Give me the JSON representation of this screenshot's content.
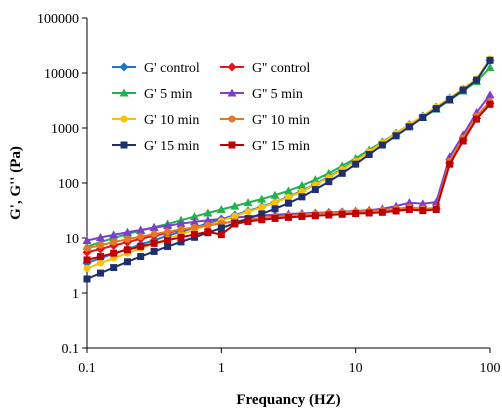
{
  "chart_data": {
    "type": "line",
    "title": "",
    "xlabel": "Frequancy (HZ)",
    "ylabel": "G', G'' (Pa)",
    "xscale": "log",
    "yscale": "log",
    "xlim": [
      0.1,
      100
    ],
    "ylim": [
      0.1,
      100000
    ],
    "x_ticks": [
      "0.1",
      "1",
      "10",
      "100"
    ],
    "y_ticks": [
      "0.1",
      "1",
      "10",
      "100",
      "1000",
      "10000",
      "100000"
    ],
    "grid": false,
    "legend_position": "top-left",
    "x": [
      0.1,
      0.126,
      0.158,
      0.2,
      0.251,
      0.316,
      0.398,
      0.501,
      0.631,
      0.794,
      1,
      1.26,
      1.58,
      2,
      2.51,
      3.16,
      3.98,
      5.01,
      6.31,
      7.94,
      10,
      12.6,
      15.8,
      20,
      25.1,
      31.6,
      39.8,
      50.1,
      63.1,
      79.4,
      100
    ],
    "series": [
      {
        "name": "G' control",
        "color": "#1f77c8",
        "marker": "diamond",
        "values": [
          3.5,
          4.3,
          5.2,
          6.3,
          7.6,
          9.1,
          11,
          13,
          15.5,
          18.5,
          22,
          26,
          31,
          37,
          45,
          56,
          72,
          95,
          130,
          180,
          260,
          380,
          550,
          800,
          1150,
          1650,
          2400,
          3500,
          5100,
          7500,
          17000
        ]
      },
      {
        "name": "G'' control",
        "color": "#e0161b",
        "marker": "diamond",
        "values": [
          5.5,
          6.3,
          7.3,
          8.4,
          9.7,
          11,
          12.5,
          14,
          15.5,
          17,
          18.5,
          20,
          21.5,
          23,
          24.5,
          26,
          27,
          28,
          29,
          29.5,
          30,
          31,
          32,
          33,
          35,
          33,
          34,
          230,
          600,
          1500,
          2800
        ]
      },
      {
        "name": "G' 5 min",
        "color": "#22b14c",
        "marker": "triangle",
        "values": [
          7,
          8.4,
          10,
          11.8,
          13.6,
          15.7,
          18,
          21,
          24.5,
          28.5,
          33,
          38,
          44,
          51,
          60,
          72,
          90,
          115,
          150,
          205,
          280,
          400,
          560,
          800,
          1100,
          1550,
          2200,
          3200,
          4700,
          7000,
          12500
        ]
      },
      {
        "name": "G'' 5 min",
        "color": "#7b3fc8",
        "marker": "triangle",
        "values": [
          9,
          10.2,
          11.4,
          12.7,
          14,
          15.4,
          16.8,
          18.2,
          19.6,
          21,
          22.3,
          23.5,
          24.6,
          25.6,
          26.5,
          27.3,
          28,
          28.7,
          29.3,
          30,
          31,
          32,
          34,
          38,
          44,
          42,
          45,
          300,
          750,
          1900,
          4000
        ]
      },
      {
        "name": "G' 10 min",
        "color": "#ffc000",
        "marker": "circle",
        "values": [
          2.8,
          3.5,
          4.3,
          5.3,
          6.5,
          7.9,
          9.6,
          11.6,
          14,
          17,
          20.5,
          25,
          30,
          36,
          44,
          55,
          70,
          93,
          125,
          175,
          250,
          370,
          540,
          790,
          1140,
          1640,
          2400,
          3500,
          5200,
          7800,
          18000
        ]
      },
      {
        "name": "G'' 10 min",
        "color": "#e87722",
        "marker": "circle",
        "values": [
          6.5,
          7.4,
          8.4,
          9.5,
          10.6,
          11.8,
          13,
          14.3,
          15.6,
          17,
          18.4,
          19.8,
          21.2,
          22.6,
          24,
          25.4,
          26.6,
          27.7,
          28.6,
          29.4,
          30.2,
          31,
          32,
          34,
          36,
          34,
          35,
          250,
          650,
          1650,
          3000
        ]
      },
      {
        "name": "G' 15 min",
        "color": "#1f2f6e",
        "marker": "square",
        "values": [
          1.8,
          2.3,
          2.9,
          3.7,
          4.6,
          5.7,
          7,
          8.5,
          10.3,
          12.5,
          15.2,
          18.5,
          22.5,
          27.5,
          34,
          43,
          56,
          76,
          106,
          150,
          220,
          330,
          490,
          720,
          1050,
          1550,
          2250,
          3300,
          4900,
          7400,
          17000
        ]
      },
      {
        "name": "G'' 15 min",
        "color": "#c00000",
        "marker": "square",
        "values": [
          4,
          4.6,
          5.3,
          6.1,
          7,
          8,
          9.1,
          10.3,
          11.6,
          13,
          11.5,
          18,
          20,
          21.5,
          22.7,
          23.7,
          24.6,
          25.4,
          26.2,
          27,
          27.8,
          28.5,
          29.3,
          31,
          33,
          31.5,
          33,
          220,
          580,
          1450,
          2700
        ]
      }
    ]
  }
}
